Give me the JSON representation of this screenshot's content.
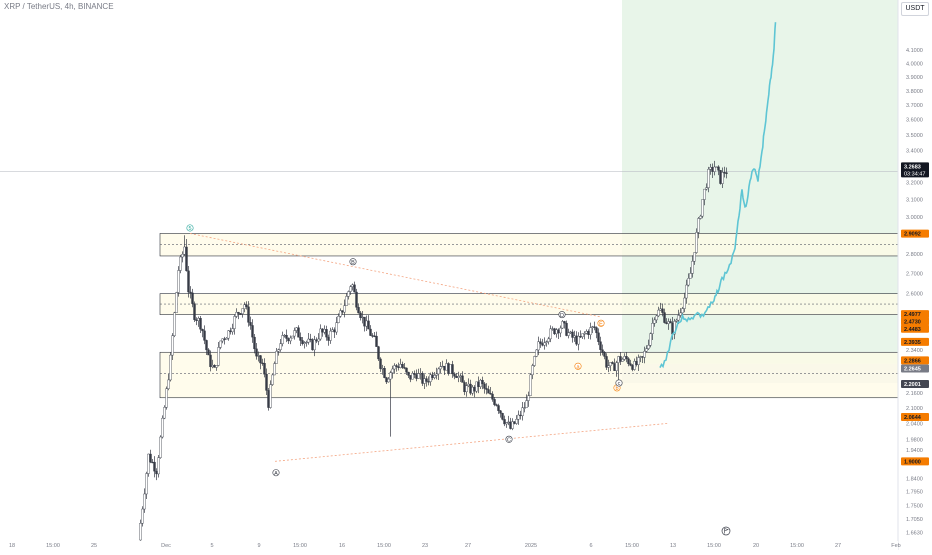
{
  "header": {
    "symbol_line": "XRP / TetherUS, 4h, BINANCE",
    "currency": "USDT"
  },
  "colors": {
    "bull": "#ffffff",
    "bear": "#363a45",
    "wick": "#363a45",
    "projection": "#5ec5d4",
    "zone_fill": "#fffbe6",
    "zone_border": "#2a2e39",
    "target_zone": "#e8f5e9",
    "stop_zone": "#eceff4",
    "orange": "#f57c00",
    "trend_dots": "#f4a582"
  },
  "chart_data": {
    "type": "candlestick",
    "title": "XRP / TetherUS, 4h, BINANCE",
    "y_unit": "USDT",
    "y_axis": {
      "scale": "log",
      "ticks": [
        "4.1000",
        "4.0000",
        "3.9000",
        "3.8000",
        "3.7000",
        "3.6000",
        "3.5000",
        "3.4000",
        "3.2000",
        "3.1000",
        "3.0000",
        "2.8000",
        "2.7000",
        "2.6000",
        "2.3400",
        "2.1600",
        "2.1000",
        "2.0400",
        "1.9800",
        "1.9400",
        "1.8400",
        "1.7950",
        "1.7500",
        "1.7050",
        "1.6630"
      ],
      "range": [
        1.64,
        4.42
      ]
    },
    "x_axis": {
      "ticks": [
        "18",
        "15:00",
        "25",
        "Dec",
        "5",
        "9",
        "15:00",
        "16",
        "15:00",
        "23",
        "27",
        "2025",
        "6",
        "15:00",
        "13",
        "15:00",
        "20",
        "15:00",
        "27",
        "Feb"
      ]
    },
    "price_labels": [
      {
        "value": "3.2683",
        "sub": "03:34:47",
        "kind": "current"
      },
      {
        "value": "2.9092",
        "kind": "orange"
      },
      {
        "value": "2.4977",
        "kind": "orange"
      },
      {
        "value": "2.4730",
        "kind": "orange"
      },
      {
        "value": "2.4483",
        "kind": "orange"
      },
      {
        "value": "2.3935",
        "kind": "orange"
      },
      {
        "value": "2.2866",
        "kind": "orange"
      },
      {
        "value": "2.2645",
        "kind": "gray"
      },
      {
        "value": "2.2001",
        "kind": "dark"
      },
      {
        "value": "2.0644",
        "kind": "orange"
      },
      {
        "value": "1.9000",
        "kind": "orange"
      }
    ],
    "zones": [
      {
        "top": 2.91,
        "bottom": 2.79,
        "mid": 2.85
      },
      {
        "top": 2.6,
        "bottom": 2.5,
        "mid": 2.55
      },
      {
        "top": 2.33,
        "bottom": 2.14,
        "mid": 2.24
      }
    ],
    "current_price": 3.2683,
    "wave_labels": [
      {
        "text": "5",
        "color": "#26a69a"
      },
      {
        "text": "A",
        "color": "#363a45"
      },
      {
        "text": "B",
        "color": "#363a45"
      },
      {
        "text": "C",
        "color": "#363a45"
      },
      {
        "text": "D",
        "color": "#363a45"
      },
      {
        "text": "E",
        "color": "#f57c00"
      },
      {
        "text": "a",
        "color": "#f57c00"
      },
      {
        "text": "b",
        "color": "#f57c00"
      },
      {
        "text": "c",
        "color": "#363a45"
      }
    ]
  }
}
